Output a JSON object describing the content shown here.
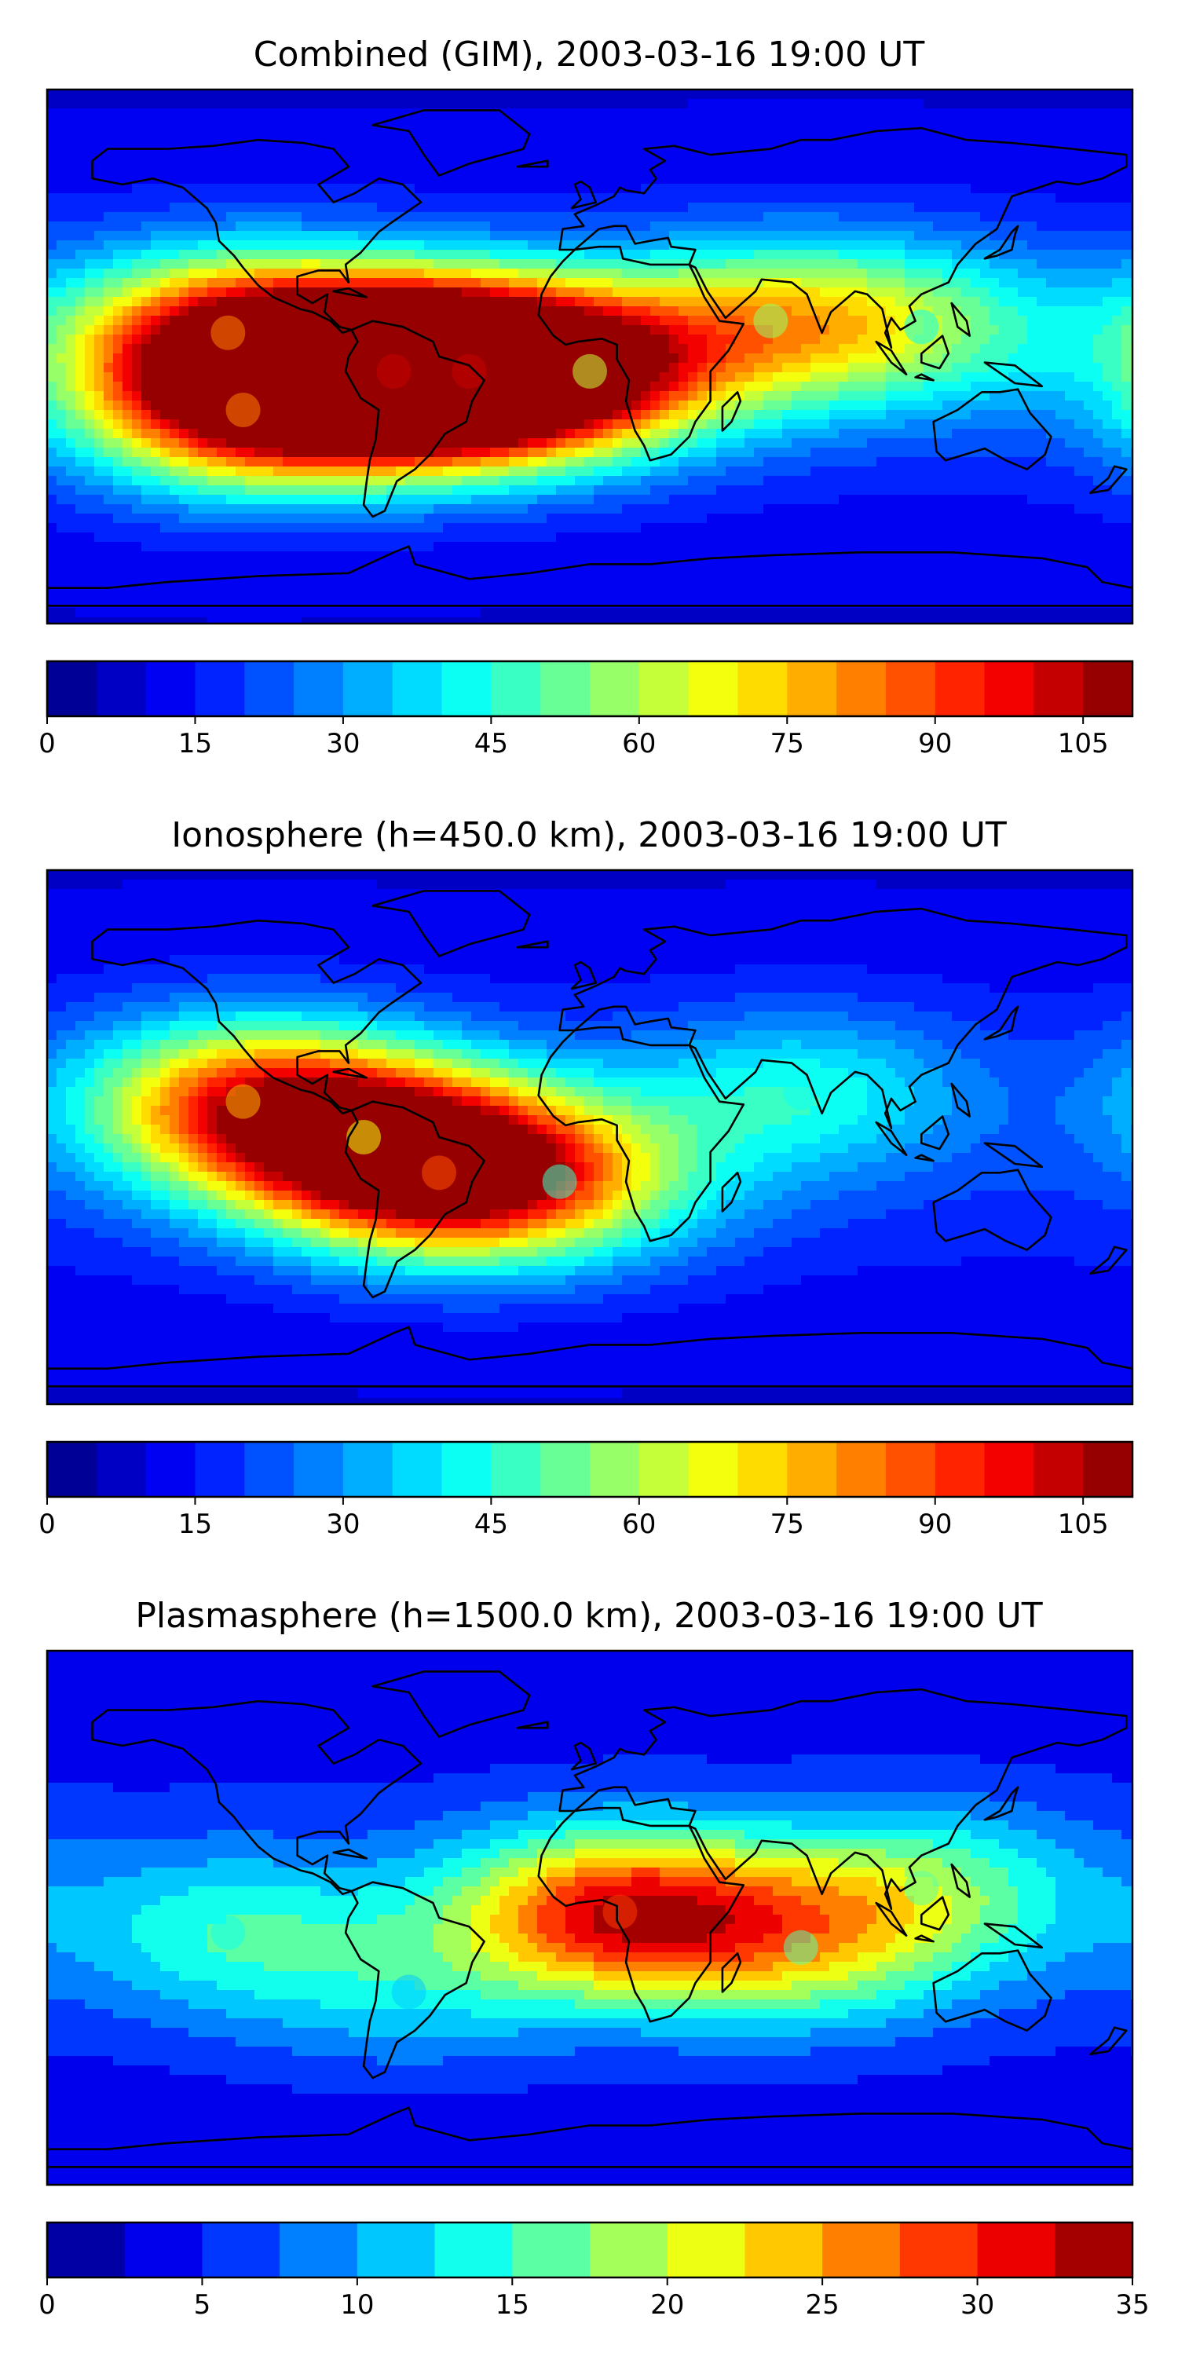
{
  "chart_data": [
    {
      "type": "heatmap",
      "title": "Combined (GIM), 2003-03-16 19:00 UT",
      "colorbar": {
        "min": 0,
        "max": 110,
        "step": 5,
        "ticks": [
          0,
          15,
          30,
          45,
          60,
          75,
          90,
          105
        ]
      },
      "peaks": [
        {
          "lon": -65,
          "lat": -5,
          "value": 104
        },
        {
          "lon": -40,
          "lat": -5,
          "value": 104
        },
        {
          "lon": -120,
          "lat": 8,
          "value": 80
        },
        {
          "lon": -115,
          "lat": -18,
          "value": 82
        },
        {
          "lon": 0,
          "lat": -5,
          "value": 62
        },
        {
          "lon": 60,
          "lat": 12,
          "value": 55
        },
        {
          "lon": 110,
          "lat": 10,
          "value": 42
        }
      ]
    },
    {
      "type": "heatmap",
      "title": "Ionosphere  (h=450.0 km), 2003-03-16 19:00 UT",
      "colorbar": {
        "min": 0,
        "max": 110,
        "step": 5,
        "ticks": [
          0,
          15,
          30,
          45,
          60,
          75,
          90,
          105
        ]
      },
      "peaks": [
        {
          "lon": -50,
          "lat": -12,
          "value": 86
        },
        {
          "lon": -115,
          "lat": 12,
          "value": 75
        },
        {
          "lon": -75,
          "lat": 0,
          "value": 65
        },
        {
          "lon": -10,
          "lat": -15,
          "value": 48
        },
        {
          "lon": 70,
          "lat": 15,
          "value": 40
        }
      ]
    },
    {
      "type": "heatmap",
      "title": "Plasmasphere (h=1500.0 km), 2003-03-16 19:00 UT",
      "colorbar": {
        "min": 0,
        "max": 35,
        "step": 2.5,
        "ticks": [
          0,
          5,
          10,
          15,
          20,
          25,
          30,
          35
        ]
      },
      "peaks": [
        {
          "lon": 10,
          "lat": 2,
          "value": 29
        },
        {
          "lon": 70,
          "lat": -10,
          "value": 16
        },
        {
          "lon": 110,
          "lat": 10,
          "value": 15
        },
        {
          "lon": -120,
          "lat": -5,
          "value": 13
        },
        {
          "lon": -60,
          "lat": -25,
          "value": 10
        }
      ]
    }
  ]
}
